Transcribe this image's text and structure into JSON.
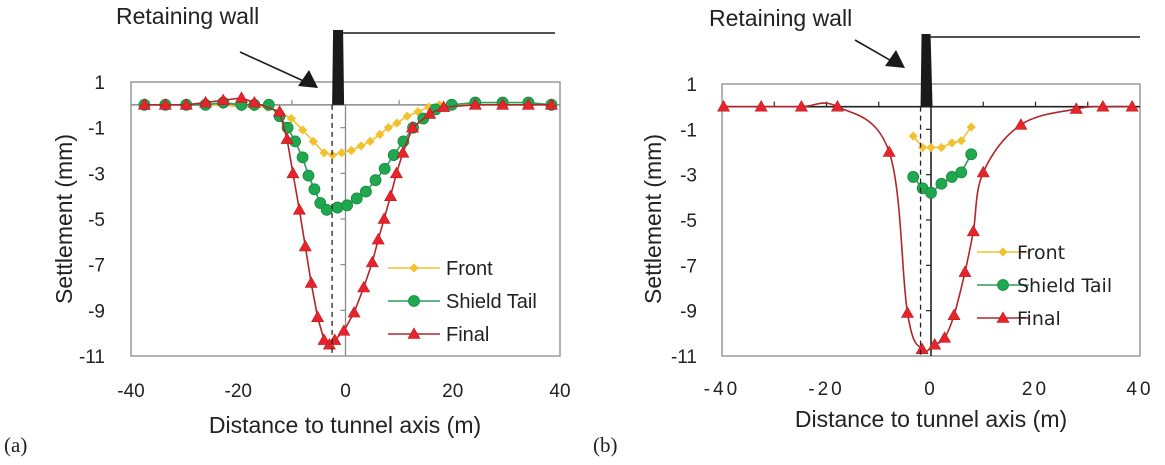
{
  "chart_data": [
    {
      "id": "a",
      "type": "line",
      "panel_label": "(a)",
      "annotation": "Retaining wall",
      "xlabel": "Distance to tunnel axis (m)",
      "ylabel": "Settlement (mm)",
      "xlim": [
        -40,
        40
      ],
      "ylim": [
        -11,
        1
      ],
      "xticks": [
        -40,
        -20,
        0,
        20,
        40
      ],
      "xtick_labels": [
        "-40",
        "-20",
        "0",
        "20",
        "40"
      ],
      "yticks": [
        1,
        -1,
        -3,
        -5,
        -7,
        -9,
        -11
      ],
      "ytick_labels": [
        "1",
        "-1",
        "-3",
        "-5",
        "-7",
        "-9",
        "-11"
      ],
      "wall_x": -2.5,
      "grid": false,
      "legend": {
        "position": "bottom-right",
        "entries": [
          "Front",
          "Shield Tail",
          "Final"
        ]
      },
      "series": [
        {
          "name": "Front",
          "color": "#F2C12E",
          "marker": "diamond",
          "smooth": false,
          "x": [
            -37.5,
            -33.6,
            -29.7,
            -26.1,
            -22.8,
            -19.4,
            -17.0,
            -14.6,
            -12.3,
            -10.1,
            -8.0,
            -6.0,
            -4.0,
            -2.4,
            -0.7,
            1.1,
            2.9,
            4.6,
            6.4,
            8.0,
            9.6,
            11.5,
            13.5,
            15.5,
            17.5,
            20.0,
            24.2,
            29.3,
            34.1,
            38.4
          ],
          "y": [
            0.0,
            0.0,
            0.0,
            0.0,
            0.0,
            -0.1,
            -0.1,
            -0.1,
            -0.3,
            -0.6,
            -1.1,
            -1.6,
            -2.1,
            -2.2,
            -2.1,
            -2.0,
            -1.8,
            -1.6,
            -1.3,
            -1.0,
            -0.8,
            -0.5,
            -0.3,
            -0.1,
            0.0,
            0.0,
            0.0,
            0.0,
            0.0,
            0.0
          ]
        },
        {
          "name": "Shield Tail",
          "color": "#1FA84F",
          "marker": "circle",
          "smooth": false,
          "x": [
            -37.5,
            -33.6,
            -29.7,
            -26.1,
            -22.8,
            -19.4,
            -17.0,
            -14.3,
            -12.3,
            -10.8,
            -9.4,
            -8.0,
            -6.9,
            -5.8,
            -4.7,
            -3.5,
            -1.5,
            0.3,
            2.1,
            3.8,
            5.6,
            7.3,
            9.0,
            10.8,
            12.6,
            14.5,
            16.8,
            19.8,
            24.2,
            29.3,
            34.1,
            38.4
          ],
          "y": [
            0.0,
            0.0,
            0.0,
            0.0,
            0.1,
            0.0,
            0.0,
            0.0,
            -0.5,
            -1.0,
            -1.6,
            -2.3,
            -3.1,
            -3.7,
            -4.3,
            -4.6,
            -4.5,
            -4.4,
            -4.1,
            -3.8,
            -3.3,
            -2.8,
            -2.2,
            -1.6,
            -1.0,
            -0.6,
            -0.2,
            0.0,
            0.1,
            0.1,
            0.1,
            0.0
          ]
        },
        {
          "name": "Final",
          "color": "#E8242B",
          "marker": "triangle",
          "smooth": false,
          "x": [
            -37.5,
            -33.6,
            -29.7,
            -26.1,
            -22.8,
            -19.4,
            -17.0,
            -12.3,
            -10.9,
            -9.8,
            -8.6,
            -7.5,
            -6.4,
            -5.2,
            -4.0,
            -3.0,
            -2.0,
            -0.3,
            1.6,
            3.4,
            5.0,
            6.1,
            7.2,
            8.4,
            9.5,
            10.7,
            12.5,
            15.7,
            18.3,
            24.2,
            29.3,
            34.1,
            38.4
          ],
          "y": [
            0.0,
            0.0,
            0.0,
            0.1,
            0.2,
            0.3,
            0.1,
            -0.3,
            -1.5,
            -3.0,
            -4.6,
            -6.2,
            -7.8,
            -9.3,
            -10.3,
            -10.5,
            -10.3,
            -9.9,
            -9.1,
            -8.0,
            -6.9,
            -5.9,
            -5.0,
            -4.0,
            -3.0,
            -2.1,
            -1.0,
            -0.4,
            -0.1,
            0.0,
            0.0,
            0.0,
            0.0
          ]
        }
      ]
    },
    {
      "id": "b",
      "type": "line",
      "panel_label": "(b)",
      "annotation": "Retaining wall",
      "xlabel": "Distance to tunnel axis (m)",
      "ylabel": "Settlement (mm)",
      "xlim": [
        -40,
        40
      ],
      "ylim": [
        -11,
        1
      ],
      "xticks": [
        -40,
        -20,
        0,
        20,
        40
      ],
      "xtick_labels": [
        "-40",
        "-20",
        "0",
        "20",
        "40"
      ],
      "yticks": [
        1,
        -1,
        -3,
        -5,
        -7,
        -9,
        -11
      ],
      "ytick_labels": [
        "1",
        "-1",
        "-3",
        "-5",
        "-7",
        "-9",
        "-11"
      ],
      "wall_x": -2.0,
      "grid": false,
      "legend": {
        "position": "bottom-right",
        "entries": [
          "Front",
          "Shield Tail",
          "Final"
        ]
      },
      "series": [
        {
          "name": "Front",
          "color": "#F2C12E",
          "marker": "diamond",
          "smooth": false,
          "x": [
            -3.4,
            -1.6,
            0.0,
            2.0,
            4.0,
            5.8,
            7.7
          ],
          "y": [
            -1.3,
            -1.8,
            -1.8,
            -1.8,
            -1.6,
            -1.5,
            -0.9
          ]
        },
        {
          "name": "Shield Tail",
          "color": "#1FA84F",
          "marker": "circle",
          "smooth": false,
          "x": [
            -3.4,
            -1.6,
            0.0,
            2.0,
            4.0,
            5.8,
            7.7
          ],
          "y": [
            -3.1,
            -3.6,
            -3.8,
            -3.4,
            -3.1,
            -2.9,
            -2.1
          ]
        },
        {
          "name": "Final",
          "color": "#E8242B",
          "marker": "triangle",
          "smooth": true,
          "x": [
            -39.7,
            -32.5,
            -24.8,
            -17.9,
            -8.0,
            -4.5,
            -1.7,
            0.7,
            2.6,
            4.4,
            6.5,
            8.1,
            10.0,
            17.2,
            27.8,
            32.9,
            38.5
          ],
          "y": [
            0.0,
            0.0,
            0.0,
            0.0,
            -2.0,
            -9.1,
            -10.7,
            -10.5,
            -10.2,
            -9.2,
            -7.3,
            -5.5,
            -2.9,
            -0.8,
            -0.1,
            0.0,
            0.0
          ]
        }
      ]
    }
  ]
}
